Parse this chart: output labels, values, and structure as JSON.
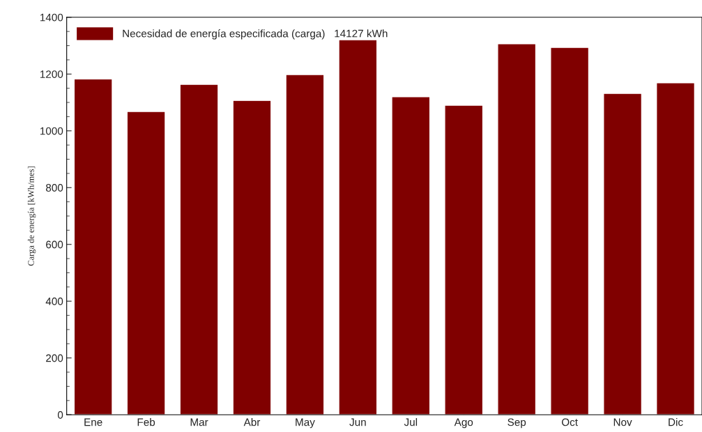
{
  "chart_data": {
    "type": "bar",
    "ylabel": "Carga de energía [kWh/mes]",
    "categories": [
      "Ene",
      "Feb",
      "Mar",
      "Abr",
      "May",
      "Jun",
      "Jul",
      "Ago",
      "Sep",
      "Oct",
      "Nov",
      "Dic"
    ],
    "series": [
      {
        "name": "Necesidad de energía especificada (carga)   14127 kWh",
        "color": "#800000",
        "values": [
          1183,
          1068,
          1164,
          1107,
          1198,
          1321,
          1120,
          1090,
          1307,
          1294,
          1132,
          1169
        ]
      }
    ],
    "ylim": [
      0,
      1400
    ],
    "yticks": [
      0,
      200,
      400,
      600,
      800,
      1000,
      1200,
      1400
    ],
    "grid": false,
    "legend": "top left"
  }
}
